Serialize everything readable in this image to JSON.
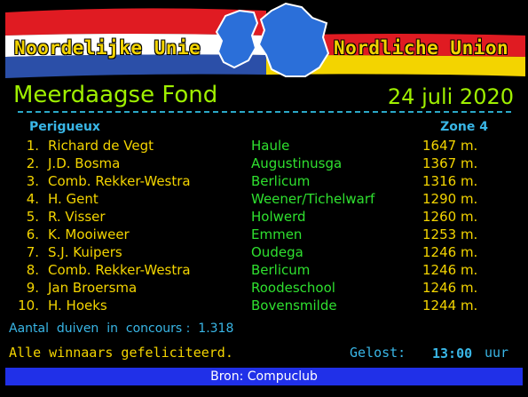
{
  "banner": {
    "left_text": "Noordelijke Unie",
    "right_text": "Nordliche Union",
    "colors": {
      "nl_red": "#e01b22",
      "nl_white": "#ffffff",
      "nl_blue": "#2b4fa8",
      "de_black": "#000000",
      "de_red": "#e01b22",
      "de_gold": "#f3d400",
      "map_blue": "#2b6fd9"
    }
  },
  "header": {
    "title": "Meerdaagse Fond",
    "date": "24 juli 2020",
    "region": "Perigueux",
    "zone": "Zone 4"
  },
  "results": [
    {
      "rank": "1.",
      "name": "Richard de Vegt",
      "place": "Haule",
      "distance": "1647 m."
    },
    {
      "rank": "2.",
      "name": "J.D. Bosma",
      "place": "Augustinusga",
      "distance": "1367 m."
    },
    {
      "rank": "3.",
      "name": "Comb. Rekker-Westra",
      "place": "Berlicum",
      "distance": "1316 m."
    },
    {
      "rank": "4.",
      "name": "H. Gent",
      "place": "Weener/Tichelwarf",
      "distance": "1290 m."
    },
    {
      "rank": "5.",
      "name": "R. Visser",
      "place": "Holwerd",
      "distance": "1260 m."
    },
    {
      "rank": "6.",
      "name": "K. Mooiweer",
      "place": "Emmen",
      "distance": "1253 m."
    },
    {
      "rank": "7.",
      "name": "S.J. Kuipers",
      "place": "Oudega",
      "distance": "1246 m."
    },
    {
      "rank": "8.",
      "name": "Comb. Rekker-Westra",
      "place": "Berlicum",
      "distance": "1246 m."
    },
    {
      "rank": "9.",
      "name": "Jan Broersma",
      "place": "Roodeschool",
      "distance": "1246 m."
    },
    {
      "rank": "10.",
      "name": "H. Hoeks",
      "place": "Bovensmilde",
      "distance": "1244 m."
    }
  ],
  "stats": {
    "label": "Aantal  duiven  in  concours :",
    "value": "1.318"
  },
  "congrats": "Alle winnaars gefeliciteerd.",
  "released": {
    "label": "Gelost:",
    "time": "13:00",
    "unit": "uur"
  },
  "footer": "Bron: Compuclub"
}
